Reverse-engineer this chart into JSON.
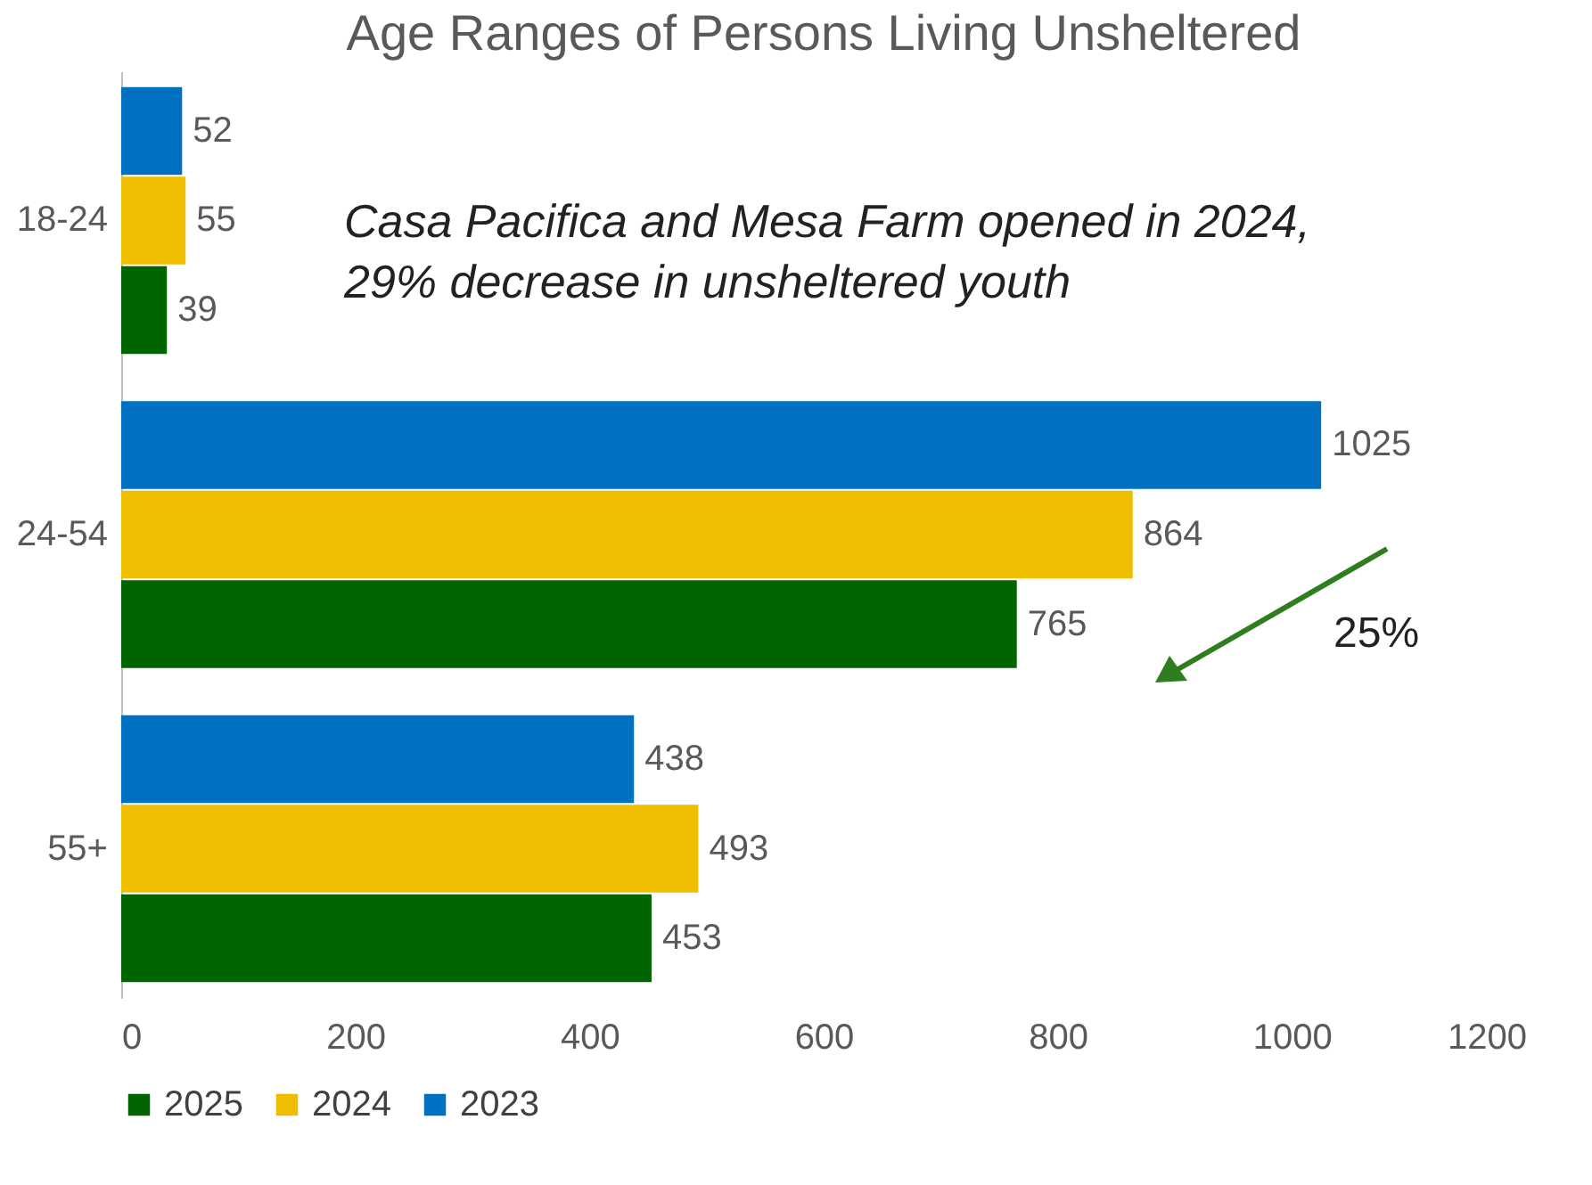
{
  "chart_data": {
    "type": "bar",
    "orientation": "horizontal",
    "title": "Age Ranges of Persons Living Unsheltered",
    "categories": [
      "18-24",
      "24-54",
      "55+"
    ],
    "series": [
      {
        "name": "2025",
        "color": "#006400",
        "values": [
          39,
          765,
          453
        ]
      },
      {
        "name": "2024",
        "color": "#f0be00",
        "values": [
          55,
          864,
          493
        ]
      },
      {
        "name": "2023",
        "color": "#0070c0",
        "values": [
          52,
          1025,
          438
        ]
      }
    ],
    "xlim": [
      0,
      1200
    ],
    "xticks": [
      0,
      200,
      400,
      600,
      800,
      1000,
      1200
    ],
    "data_labels": true,
    "legend": "bottom",
    "grid": false,
    "annotations": [
      "Casa Pacifica and Mesa Farm opened in 2024, 29% decrease in unsheltered youth",
      "25%"
    ]
  }
}
